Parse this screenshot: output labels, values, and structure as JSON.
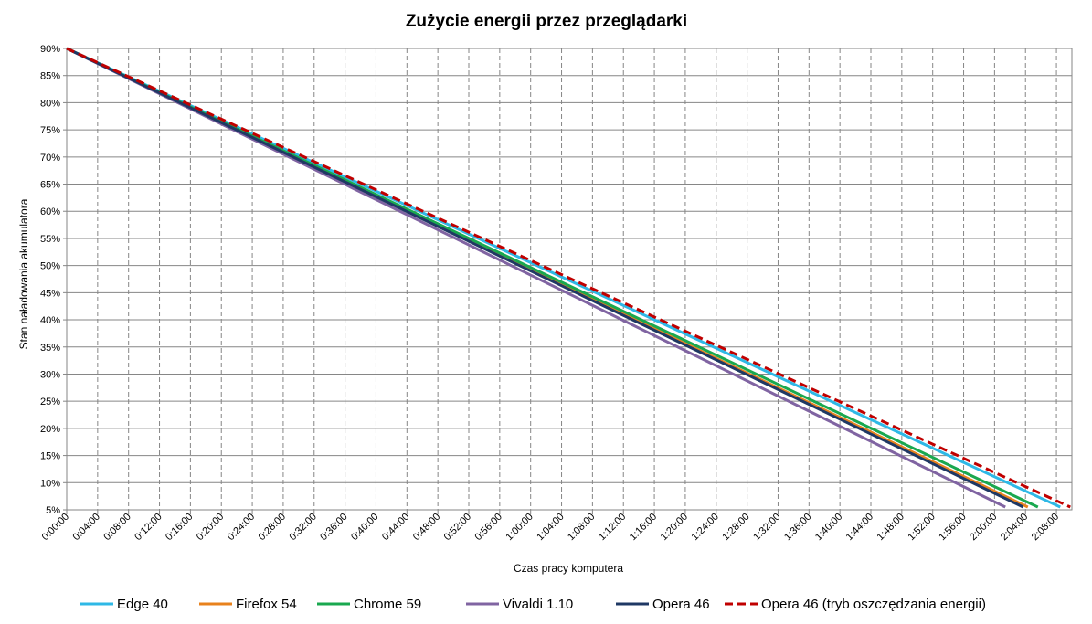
{
  "chart_data": {
    "type": "line",
    "title": "Zużycie energii przez przeglądarki",
    "xlabel": "Czas pracy komputera",
    "ylabel": "Stan naładowania akumulatora",
    "x_unit": "minutes",
    "xlim": [
      0,
      130
    ],
    "ylim": [
      5,
      90
    ],
    "x_ticks": [
      "0:00:00",
      "0:04:00",
      "0:08:00",
      "0:12:00",
      "0:16:00",
      "0:20:00",
      "0:24:00",
      "0:28:00",
      "0:32:00",
      "0:36:00",
      "0:40:00",
      "0:44:00",
      "0:48:00",
      "0:52:00",
      "0:56:00",
      "1:00:00",
      "1:04:00",
      "1:08:00",
      "1:12:00",
      "1:16:00",
      "1:20:00",
      "1:24:00",
      "1:28:00",
      "1:32:00",
      "1:36:00",
      "1:40:00",
      "1:44:00",
      "1:48:00",
      "1:52:00",
      "1:56:00",
      "2:00:00",
      "2:04:00",
      "2:08:00"
    ],
    "y_ticks": [
      "5%",
      "10%",
      "15%",
      "20%",
      "25%",
      "30%",
      "35%",
      "40%",
      "45%",
      "50%",
      "55%",
      "60%",
      "65%",
      "70%",
      "75%",
      "80%",
      "85%",
      "90%"
    ],
    "grid": {
      "x": true,
      "y": true
    },
    "legend_position": "bottom",
    "series": [
      {
        "name": "Edge 40",
        "color": "#2eb8e6",
        "dashed": false,
        "x": [
          0,
          128.5
        ],
        "y": [
          90,
          5.5
        ]
      },
      {
        "name": "Firefox 54",
        "color": "#e8821c",
        "dashed": false,
        "x": [
          0,
          124.3
        ],
        "y": [
          90,
          5.5
        ]
      },
      {
        "name": "Chrome 59",
        "color": "#1aa84f",
        "dashed": false,
        "x": [
          0,
          125.6
        ],
        "y": [
          90,
          5.5
        ]
      },
      {
        "name": "Vivaldi 1.10",
        "color": "#8064a2",
        "dashed": false,
        "x": [
          0,
          121.4
        ],
        "y": [
          90,
          5.5
        ]
      },
      {
        "name": "Opera 46",
        "color": "#1f3864",
        "dashed": false,
        "x": [
          0,
          123.7
        ],
        "y": [
          90,
          5.5
        ]
      },
      {
        "name": "Opera 46 (tryb oszczędzania energii)",
        "color": "#c00000",
        "dashed": true,
        "x": [
          0,
          129.8
        ],
        "y": [
          90,
          5.5
        ]
      }
    ]
  }
}
